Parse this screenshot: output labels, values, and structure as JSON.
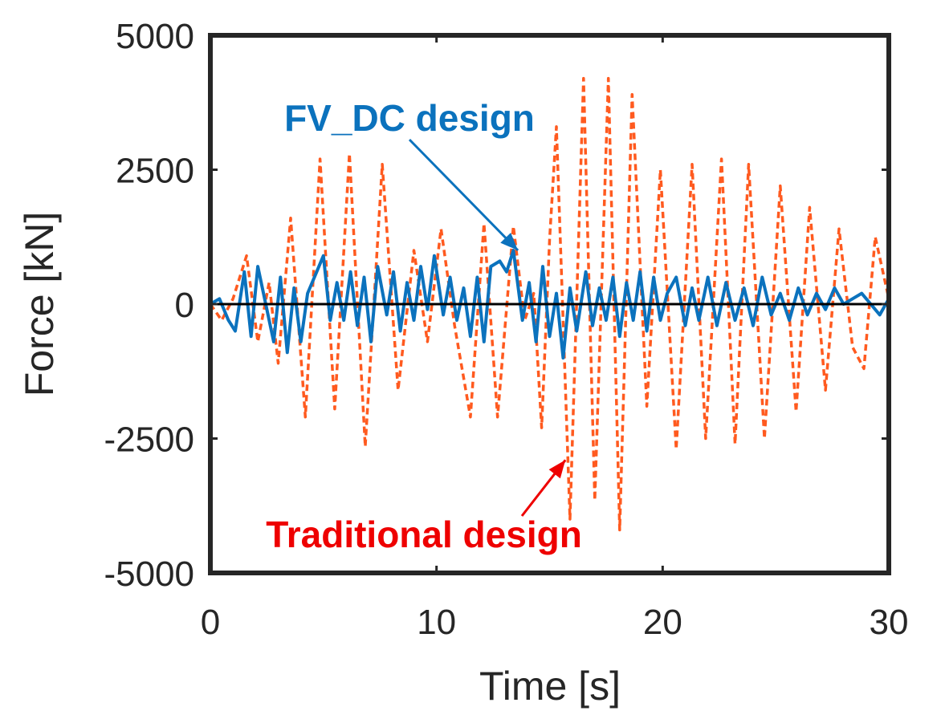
{
  "chart_data": {
    "type": "line",
    "title": "",
    "xlabel": "Time [s]",
    "ylabel": "Force [kN]",
    "xlim": [
      0,
      30
    ],
    "ylim": [
      -5000,
      5000
    ],
    "xticks": [
      0,
      10,
      20,
      30
    ],
    "yticks": [
      5000,
      2500,
      0,
      -2500,
      -5000
    ],
    "xtick_labels": [
      "0",
      "10",
      "20",
      "30"
    ],
    "ytick_labels": [
      "5000",
      "2500",
      "0",
      "-2500",
      "-5000"
    ],
    "grid": false,
    "series": [
      {
        "name": "Traditional design",
        "style": "dashed",
        "color": "#ff5a1f",
        "x": [
          0,
          0.5,
          1.0,
          1.6,
          2.1,
          2.6,
          3.0,
          3.55,
          4.2,
          4.85,
          5.5,
          6.15,
          6.85,
          7.6,
          8.3,
          9.0,
          9.6,
          10.2,
          10.8,
          11.5,
          12.1,
          12.7,
          13.4,
          13.9,
          14.3,
          14.65,
          15.0,
          15.3,
          15.9,
          16.5,
          17.0,
          17.6,
          18.1,
          18.65,
          19.3,
          19.9,
          20.6,
          21.3,
          21.9,
          22.6,
          23.2,
          23.8,
          24.5,
          25.2,
          25.9,
          26.5,
          27.2,
          27.8,
          28.4,
          28.9,
          29.4,
          30.0
        ],
        "y": [
          0,
          -300,
          100,
          900,
          -700,
          400,
          -1100,
          1600,
          -2100,
          2700,
          -1950,
          2800,
          -2650,
          2600,
          -1600,
          1000,
          -700,
          1400,
          -400,
          -2100,
          1500,
          -2100,
          1450,
          -300,
          200,
          -2300,
          1200,
          3300,
          -4000,
          4200,
          -3650,
          4200,
          -4200,
          3900,
          -1900,
          2500,
          -2700,
          2600,
          -2500,
          2700,
          -2600,
          2600,
          -2500,
          2200,
          -2000,
          1800,
          -1600,
          1400,
          -800,
          -1200,
          1250,
          100
        ]
      },
      {
        "name": "FV_DC design",
        "style": "solid",
        "color": "#0b72bd",
        "x": [
          0,
          0.4,
          0.8,
          1.1,
          1.5,
          1.8,
          2.1,
          2.5,
          2.8,
          3.1,
          3.4,
          3.7,
          4.0,
          4.3,
          4.7,
          5.0,
          5.3,
          5.6,
          5.9,
          6.2,
          6.5,
          6.8,
          7.1,
          7.4,
          7.8,
          8.1,
          8.4,
          8.7,
          9.0,
          9.3,
          9.6,
          9.9,
          10.3,
          10.6,
          10.9,
          11.2,
          11.5,
          11.8,
          12.1,
          12.4,
          12.8,
          13.1,
          13.4,
          13.8,
          14.1,
          14.4,
          14.7,
          15.0,
          15.3,
          15.6,
          15.9,
          16.2,
          16.6,
          16.9,
          17.2,
          17.5,
          17.8,
          18.1,
          18.4,
          18.7,
          19.0,
          19.3,
          19.6,
          19.9,
          20.2,
          20.6,
          21.0,
          21.3,
          21.6,
          22.0,
          22.4,
          22.8,
          23.2,
          23.6,
          24.0,
          24.4,
          24.8,
          25.2,
          25.6,
          26.0,
          26.4,
          26.8,
          27.2,
          27.6,
          28.0,
          28.4,
          28.8,
          29.2,
          29.6,
          30.0
        ],
        "y": [
          0,
          100,
          -300,
          -500,
          600,
          -600,
          700,
          -100,
          -700,
          500,
          -900,
          300,
          -700,
          200,
          600,
          900,
          -300,
          400,
          -300,
          600,
          -400,
          500,
          -700,
          700,
          -200,
          600,
          -500,
          400,
          -300,
          700,
          -100,
          900,
          -200,
          500,
          -300,
          300,
          -600,
          500,
          -700,
          700,
          800,
          600,
          1000,
          -300,
          400,
          -700,
          700,
          -600,
          200,
          -1000,
          300,
          -500,
          600,
          -400,
          300,
          -300,
          500,
          -600,
          400,
          -300,
          600,
          -500,
          500,
          -300,
          200,
          500,
          -400,
          300,
          -300,
          500,
          -400,
          400,
          -300,
          300,
          -400,
          500,
          -200,
          200,
          -300,
          300,
          -200,
          200,
          -100,
          300,
          0,
          100,
          200,
          0,
          -200,
          100
        ]
      }
    ],
    "annotations": [
      {
        "text": "FV_DC design",
        "color": "#0b72bd",
        "points_to": {
          "x": 13.6,
          "y": 1000
        }
      },
      {
        "text": "Traditional design",
        "color": "#ee0000",
        "points_to": {
          "x": 15.7,
          "y": -2900
        }
      }
    ]
  }
}
